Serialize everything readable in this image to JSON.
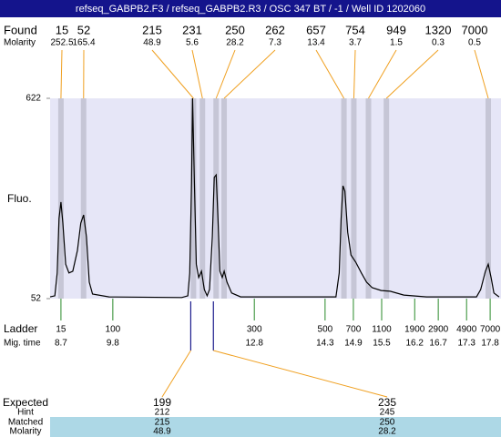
{
  "header": {
    "title": "refseq_GABPB2.F3 / refseq_GABPB2.R3 / OSC 347 BT / -1 / Well ID 1202060"
  },
  "chart_data": {
    "type": "electropherogram",
    "y_label": "Fluo.",
    "ylim": [
      52,
      622
    ],
    "yticks": [
      52,
      622
    ],
    "xlim": [
      8.47,
      18.03
    ],
    "found": {
      "label": "Found",
      "molarity_label": "Molarity",
      "sizes": [
        15,
        52,
        215,
        231,
        250,
        262,
        657,
        754,
        949,
        1320,
        7000
      ],
      "molarity": [
        252.5,
        165.4,
        48.9,
        5.6,
        28.2,
        7.3,
        13.4,
        3.7,
        1.5,
        0.3,
        0.5
      ],
      "mig_time": [
        8.7,
        9.18,
        11.51,
        11.7,
        11.99,
        12.16,
        14.7,
        14.91,
        15.22,
        15.6,
        17.76
      ]
    },
    "ladder": {
      "label": "Ladder",
      "mig_label": "Mig. time",
      "sizes": [
        15,
        100,
        300,
        500,
        700,
        1100,
        1900,
        2900,
        4900,
        7000
      ],
      "mig_time": [
        8.7,
        9.8,
        12.8,
        14.3,
        14.9,
        15.5,
        16.2,
        16.7,
        17.3,
        17.8
      ]
    },
    "trace": {
      "color": "#000000",
      "x": [
        8.47,
        8.57,
        8.62,
        8.66,
        8.7,
        8.74,
        8.8,
        8.87,
        8.95,
        9.05,
        9.12,
        9.18,
        9.24,
        9.3,
        9.37,
        9.72,
        11.26,
        11.39,
        11.43,
        11.47,
        11.49,
        11.53,
        11.57,
        11.62,
        11.68,
        11.74,
        11.8,
        11.85,
        11.91,
        11.95,
        11.99,
        12.03,
        12.07,
        12.12,
        12.16,
        12.22,
        12.32,
        12.51,
        14.53,
        14.6,
        14.64,
        14.68,
        14.72,
        14.78,
        14.85,
        14.95,
        15.07,
        15.18,
        15.3,
        15.49,
        15.68,
        15.97,
        16.45,
        17.51,
        17.6,
        17.7,
        17.76,
        17.82,
        17.88,
        17.99
      ],
      "y": [
        57,
        60,
        125,
        280,
        327,
        267,
        150,
        125,
        130,
        189,
        267,
        290,
        228,
        99,
        65,
        57,
        55,
        60,
        125,
        384,
        622,
        384,
        150,
        112,
        130,
        78,
        60,
        78,
        228,
        397,
        404,
        280,
        130,
        112,
        130,
        99,
        68,
        57,
        57,
        125,
        280,
        373,
        358,
        241,
        176,
        156,
        125,
        99,
        83,
        75,
        73,
        62,
        57,
        57,
        78,
        130,
        150,
        112,
        68,
        57
      ]
    },
    "expected": {
      "row_labels": [
        "Expected",
        "Hint",
        "Matched",
        "Molarity"
      ],
      "expected": [
        199,
        235
      ],
      "hint": [
        212,
        245
      ],
      "matched": [
        215,
        250
      ],
      "molarity": [
        48.9,
        28.2
      ]
    }
  }
}
